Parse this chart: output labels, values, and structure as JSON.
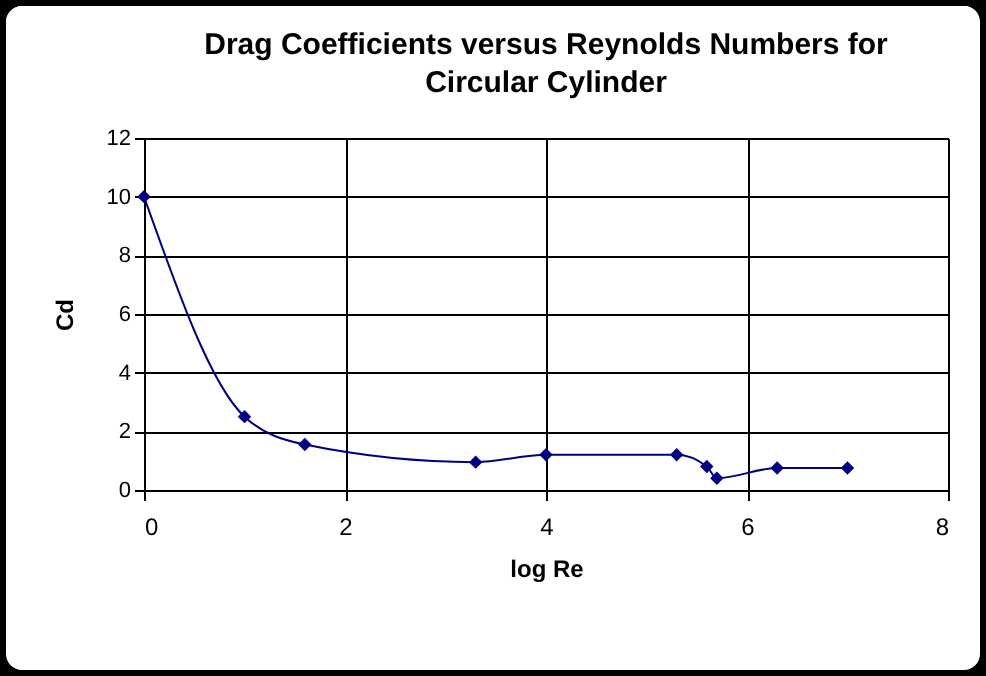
{
  "chart_data": {
    "type": "line",
    "title": "Drag Coefficients versus Reynolds Numbers for Circular Cylinder",
    "xlabel": "log Re",
    "ylabel": "Cd",
    "x": [
      0,
      1,
      1.6,
      3.3,
      4,
      5.3,
      5.6,
      5.7,
      6.3,
      7
    ],
    "series": [
      {
        "color": "#000080",
        "values": [
          10,
          2.5,
          1.55,
          0.95,
          1.2,
          1.2,
          0.8,
          0.4,
          0.75,
          0.75
        ]
      }
    ],
    "xlim": [
      0,
      8
    ],
    "xticks": [
      0,
      2,
      4,
      6,
      8
    ],
    "ylim": [
      0,
      12
    ],
    "yticks": [
      0,
      2,
      4,
      6,
      8,
      10,
      12
    ],
    "grid": true,
    "marker": "diamond",
    "line_style": "solid",
    "legend": false
  }
}
